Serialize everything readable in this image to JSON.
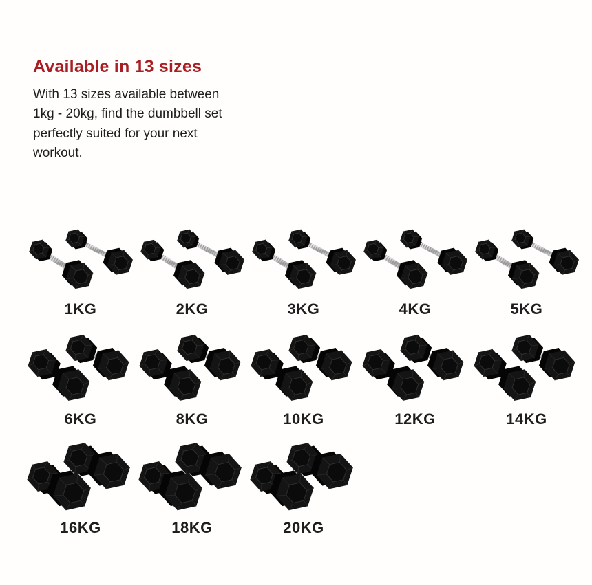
{
  "page": {
    "background_color": "#fffefc"
  },
  "intro": {
    "heading": "Available in 13 sizes",
    "heading_color": "#a81e24",
    "description": "With 13 sizes available between\n1kg - 20kg, find the dumbbell set\nperfectly suited for your next\nworkout."
  },
  "sizes_grid": {
    "unit": "KG",
    "rows": [
      {
        "dumbbell_size": "small",
        "items": [
          {
            "label": "1KG"
          },
          {
            "label": "2KG"
          },
          {
            "label": "3KG"
          },
          {
            "label": "4KG"
          },
          {
            "label": "5KG"
          }
        ]
      },
      {
        "dumbbell_size": "medium",
        "items": [
          {
            "label": "6KG"
          },
          {
            "label": "8KG"
          },
          {
            "label": "10KG"
          },
          {
            "label": "12KG"
          },
          {
            "label": "14KG"
          }
        ]
      },
      {
        "dumbbell_size": "large",
        "items": [
          {
            "label": "16KG"
          },
          {
            "label": "18KG"
          },
          {
            "label": "20KG"
          }
        ]
      }
    ],
    "illustration": {
      "head_color": "#141414",
      "head_shadow_color": "#050505",
      "handle_color": "#c9c9c9",
      "style": "pair of black rubber hex dumbbells with knurled chrome handle"
    }
  }
}
